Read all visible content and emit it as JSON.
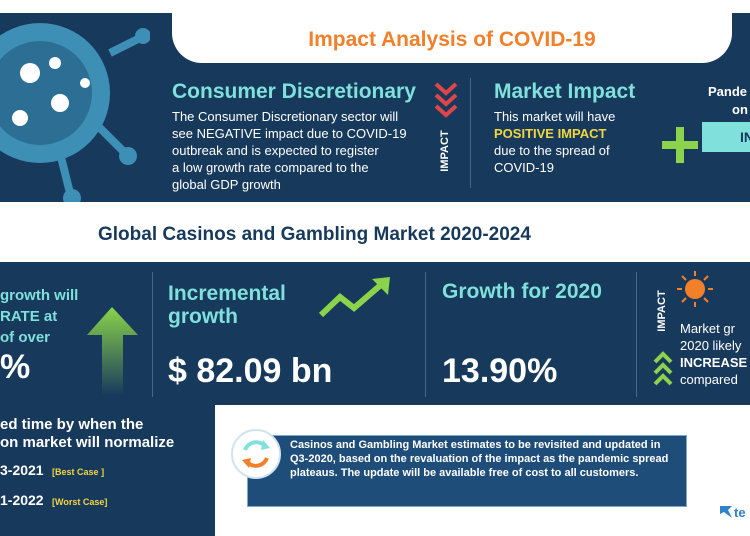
{
  "banner": {
    "title": "Impact Analysis of COVID-19"
  },
  "consumer": {
    "title": "Consumer Discretionary",
    "lines": [
      "The Consumer Discretionary sector will",
      "see NEGATIVE impact due to COVID-19",
      "outbreak and is expected to register",
      "a low growth rate compared to the",
      "global GDP growth"
    ]
  },
  "impact_label": "IMPACT",
  "market_impact": {
    "title": "Market Impact",
    "line1": "This market will have",
    "highlight": "POSITIVE IMPACT",
    "line2": "due to the spread of",
    "line3": "COVID-19"
  },
  "pandemic_box": {
    "line1": "Pande",
    "line2": "on",
    "badge": "IN"
  },
  "market_title": "Global Casinos and Gambling Market 2020-2024",
  "left_partial": {
    "line1": "growth will",
    "line2": "RATE at",
    "line3": "of over",
    "value": "%"
  },
  "incremental": {
    "label1": "Incremental",
    "label2": "growth",
    "value": "$ 82.09 bn"
  },
  "growth2020": {
    "label": "Growth for 2020",
    "value": "13.90%"
  },
  "right_partial": {
    "impact_label": "IMPACT",
    "line1": "Market gr",
    "line2": "2020 likely",
    "line3": "INCREASE",
    "line4": "compared"
  },
  "normalize": {
    "line1": "ed time by when the",
    "line2": "on market will normalize",
    "best_year": "3-2021",
    "best_tag": "[Best Case ]",
    "worst_year": "1-2022",
    "worst_tag": "[Worst Case]"
  },
  "note": {
    "text": "Casinos and Gambling Market estimates to be revisited and updated in Q3-2020, based on the revaluation of the impact as the pandemic spread plateaus. The update will be available free of cost to all customers."
  },
  "logo": {
    "text": "te"
  },
  "colors": {
    "navy": "#173a5c",
    "teal": "#7fe0dc",
    "orange": "#f27f2a",
    "yellow": "#f3d541",
    "green": "#8bd34a"
  }
}
